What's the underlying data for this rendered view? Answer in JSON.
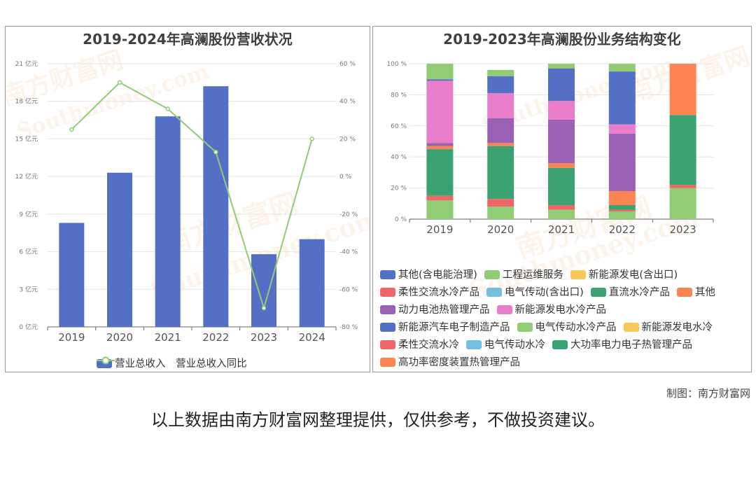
{
  "left_chart": {
    "title": "2019-2024年高澜股份营收状况",
    "legend": {
      "bar_label": "营业总收入",
      "line_label": "营业总收入同比"
    },
    "colors": {
      "bar": "#5470c6",
      "line": "#91cc75"
    },
    "left_ticks": [
      "0 亿元",
      "3 亿元",
      "6 亿元",
      "9 亿元",
      "12 亿元",
      "15 亿元",
      "18 亿元",
      "21 亿元"
    ],
    "right_ticks": [
      "-80 %",
      "-60 %",
      "-40 %",
      "-20 %",
      "0 %",
      "20 %",
      "40 %",
      "60 %"
    ]
  },
  "right_chart": {
    "title": "2019-2023年高澜股份业务结构变化",
    "y_ticks": [
      "0 %",
      "20 %",
      "40 %",
      "60 %",
      "80 %",
      "100 %"
    ]
  },
  "chart_data": [
    {
      "type": "bar",
      "title": "2019-2024年高澜股份营收状况",
      "categories": [
        "2019",
        "2020",
        "2021",
        "2022",
        "2023",
        "2024"
      ],
      "ylim": [
        0,
        21
      ],
      "y2lim": [
        -80,
        60
      ],
      "series": [
        {
          "name": "营业总收入",
          "type": "bar",
          "axis": "left",
          "values": [
            8.3,
            12.3,
            16.8,
            19.2,
            5.8,
            7.0
          ]
        },
        {
          "name": "营业总收入同比",
          "type": "line",
          "axis": "right",
          "values": [
            25,
            50,
            36,
            13,
            -70,
            20
          ]
        }
      ]
    },
    {
      "type": "bar",
      "stacked": true,
      "title": "2019-2023年高澜股份业务结构变化",
      "categories": [
        "2019",
        "2020",
        "2021",
        "2022",
        "2023"
      ],
      "ylim": [
        0,
        100
      ],
      "series": [
        {
          "name": "其他(含电能治理)",
          "color": "#5470c6",
          "values": [
            0,
            0,
            0,
            0,
            0
          ]
        },
        {
          "name": "工程运维服务",
          "color": "#91cc75",
          "values": [
            12,
            8,
            6,
            5,
            0
          ]
        },
        {
          "name": "新能源发电(含出口)",
          "color": "#fac858",
          "values": [
            0,
            0,
            0,
            0,
            0
          ]
        },
        {
          "name": "柔性交流水冷产品",
          "color": "#ee6666",
          "values": [
            3,
            5,
            3,
            1,
            0
          ]
        },
        {
          "name": "电气传动(含出口)",
          "color": "#73c0de",
          "values": [
            0,
            0,
            0,
            0,
            0
          ]
        },
        {
          "name": "直流水冷产品",
          "color": "#3ba272",
          "values": [
            30,
            34,
            24,
            3,
            0
          ]
        },
        {
          "name": "其他",
          "color": "#fc8452",
          "values": [
            2,
            2,
            3,
            9,
            0
          ]
        },
        {
          "name": "动力电池热管理产品",
          "color": "#9a60b4",
          "values": [
            2,
            16,
            28,
            37,
            0
          ]
        },
        {
          "name": "新能源发电水冷产品",
          "color": "#ea7ccc",
          "values": [
            40,
            16,
            12,
            6,
            0
          ]
        },
        {
          "name": "新能源汽车电子制造产品",
          "color": "#5470c6",
          "values": [
            1,
            11,
            21,
            34,
            0
          ]
        },
        {
          "name": "电气传动水冷产品",
          "color": "#91cc75",
          "values": [
            10,
            4,
            3,
            5,
            20
          ]
        },
        {
          "name": "新能源发电水冷",
          "color": "#fac858",
          "values": [
            0,
            0,
            0,
            0,
            0
          ]
        },
        {
          "name": "柔性交流水冷",
          "color": "#ee6666",
          "values": [
            0,
            0,
            0,
            0,
            2
          ]
        },
        {
          "name": "电气传动水冷",
          "color": "#73c0de",
          "values": [
            0,
            0,
            0,
            0,
            0
          ]
        },
        {
          "name": "大功率电力电子热管理产品",
          "color": "#3ba272",
          "values": [
            0,
            0,
            0,
            0,
            45
          ]
        },
        {
          "name": "高功率密度装置热管理产品",
          "color": "#fc8452",
          "values": [
            0,
            0,
            0,
            0,
            33
          ]
        }
      ]
    }
  ],
  "legend_rows": [
    [
      "其他(含电能治理)",
      "工程运维服务",
      "新能源发电(含出口)"
    ],
    [
      "柔性交流水冷产品",
      "电气传动(含出口)",
      "直流水冷产品",
      "其他"
    ],
    [
      "动力电池热管理产品",
      "新能源发电水冷产品"
    ],
    [
      "新能源汽车电子制造产品",
      "电气传动水冷产品",
      "新能源发电水冷"
    ],
    [
      "柔性交流水冷",
      "电气传动水冷",
      "大功率电力电子热管理产品"
    ],
    [
      "高功率密度装置热管理产品"
    ]
  ],
  "watermark": {
    "cn": "南方财富网",
    "en": "Southmoney.com"
  },
  "footer": {
    "credit": "制图：南方财富网",
    "disclaimer": "以上数据由南方财富网整理提供，仅供参考，不做投资建议。"
  }
}
